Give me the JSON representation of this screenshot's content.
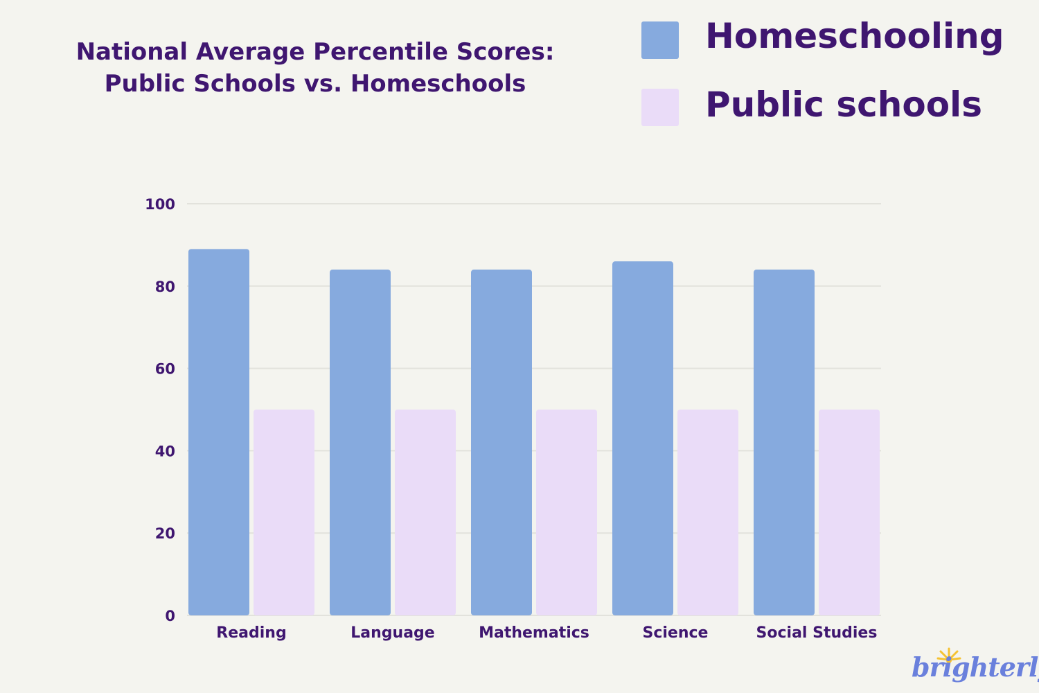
{
  "chart_data": {
    "type": "bar",
    "title": "National Average Percentile Scores:\nPublic Schools vs. Homeschools",
    "title_lines": [
      "National Average Percentile Scores:",
      "Public Schools vs. Homeschools"
    ],
    "categories": [
      "Reading",
      "Language",
      "Mathematics",
      "Science",
      "Social Studies"
    ],
    "series": [
      {
        "name": "Homeschooling",
        "values": [
          89,
          84,
          84,
          86,
          84
        ],
        "color": "#86aade"
      },
      {
        "name": "Public schools",
        "values": [
          50,
          50,
          50,
          50,
          50
        ],
        "color": "#eadcf8"
      }
    ],
    "xlabel": "",
    "ylabel": "",
    "ylim": [
      0,
      100
    ],
    "yticks": [
      0,
      20,
      40,
      60,
      80,
      100
    ],
    "grid": true,
    "legend_position": "top-right"
  },
  "colors": {
    "background": "#f4f4ef",
    "text": "#3f1670",
    "logo": "#6a80dc",
    "logo_sun": "#f5c232"
  },
  "logo": {
    "text": "brighterly"
  }
}
